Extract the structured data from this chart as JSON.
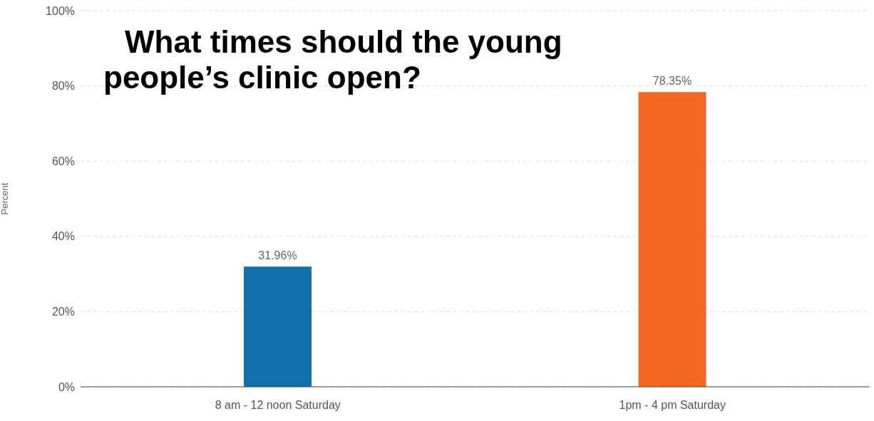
{
  "chart_data": {
    "type": "bar",
    "title": "What times should the young people’s clinic open?",
    "ylabel": "Percent",
    "categories": [
      "8 am - 12 noon Saturday",
      "1pm - 4 pm Saturday"
    ],
    "values": [
      31.96,
      78.35
    ],
    "colors": [
      "#1170aa",
      "#f26722"
    ],
    "value_labels": [
      "31.96%",
      "78.35%"
    ],
    "ylim": [
      0,
      100
    ],
    "yticks": [
      {
        "value": 0,
        "label": "0%"
      },
      {
        "value": 20,
        "label": "20%"
      },
      {
        "value": 40,
        "label": "40%"
      },
      {
        "value": 60,
        "label": "60%"
      },
      {
        "value": 80,
        "label": "80%"
      },
      {
        "value": 100,
        "label": "100%"
      }
    ],
    "grid": "y"
  }
}
